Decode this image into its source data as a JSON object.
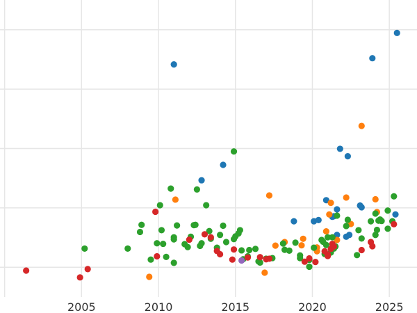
{
  "chart_data": {
    "type": "scatter",
    "title": "",
    "xlabel": "",
    "ylabel": "",
    "xlim": [
      1999.7,
      2026.8
    ],
    "ylim": [
      0,
      100
    ],
    "x_ticks": [
      2005,
      2010,
      2015,
      2020,
      2025
    ],
    "x_tick_labels": [
      "2005",
      "2010",
      "2015",
      "2020",
      "2025"
    ],
    "y_gridlines": [
      10,
      30,
      50,
      70,
      90
    ],
    "grid": true,
    "legend": "none",
    "series": [
      {
        "color": "#1f77b4",
        "points": [
          [
            2011.0,
            78.3
          ],
          [
            2012.8,
            39.3
          ],
          [
            2014.2,
            44.5
          ],
          [
            2018.8,
            25.5
          ],
          [
            2020.1,
            25.5
          ],
          [
            2020.4,
            25.9
          ],
          [
            2020.9,
            32.6
          ],
          [
            2021.3,
            27.0
          ],
          [
            2021.4,
            27.2
          ],
          [
            2021.6,
            20.9
          ],
          [
            2021.6,
            29.5
          ],
          [
            2021.8,
            49.9
          ],
          [
            2022.2,
            20.3
          ],
          [
            2022.3,
            47.4
          ],
          [
            2022.4,
            20.9
          ],
          [
            2023.1,
            30.8
          ],
          [
            2023.2,
            30.2
          ],
          [
            2023.9,
            80.4
          ],
          [
            2025.4,
            27.8
          ],
          [
            2025.5,
            88.9
          ]
        ]
      },
      {
        "color": "#ff7f0e",
        "points": [
          [
            2009.4,
            6.8
          ],
          [
            2011.1,
            32.8
          ],
          [
            2016.9,
            8.2
          ],
          [
            2017.2,
            34.2
          ],
          [
            2017.6,
            17.3
          ],
          [
            2018.2,
            18.5
          ],
          [
            2019.3,
            17.4
          ],
          [
            2019.4,
            19.6
          ],
          [
            2020.3,
            15.4
          ],
          [
            2020.3,
            16.7
          ],
          [
            2020.9,
            22.1
          ],
          [
            2021.1,
            27.8
          ],
          [
            2021.2,
            31.7
          ],
          [
            2021.6,
            19.2
          ],
          [
            2022.2,
            33.5
          ],
          [
            2022.5,
            24.6
          ],
          [
            2023.2,
            57.6
          ],
          [
            2024.1,
            32.9
          ],
          [
            2024.2,
            28.6
          ]
        ]
      },
      {
        "color": "#2ca02c",
        "points": [
          [
            2005.2,
            16.3
          ],
          [
            2008.0,
            16.3
          ],
          [
            2008.8,
            21.9
          ],
          [
            2008.9,
            24.3
          ],
          [
            2009.5,
            12.6
          ],
          [
            2009.9,
            18.1
          ],
          [
            2010.1,
            30.9
          ],
          [
            2010.2,
            22.5
          ],
          [
            2010.3,
            17.9
          ],
          [
            2010.5,
            13.5
          ],
          [
            2010.8,
            36.5
          ],
          [
            2011.0,
            20.1
          ],
          [
            2011.0,
            19.4
          ],
          [
            2011.0,
            11.5
          ],
          [
            2011.2,
            24.1
          ],
          [
            2011.7,
            17.8
          ],
          [
            2011.9,
            16.8
          ],
          [
            2012.1,
            20.3
          ],
          [
            2012.3,
            24.2
          ],
          [
            2012.4,
            24.3
          ],
          [
            2012.5,
            36.2
          ],
          [
            2012.7,
            17.2
          ],
          [
            2012.8,
            18.1
          ],
          [
            2013.1,
            30.9
          ],
          [
            2013.3,
            22.2
          ],
          [
            2013.4,
            19.6
          ],
          [
            2013.8,
            16.6
          ],
          [
            2014.0,
            20.9
          ],
          [
            2014.2,
            24.0
          ],
          [
            2014.4,
            18.5
          ],
          [
            2014.9,
            19.5
          ],
          [
            2014.9,
            49.0
          ],
          [
            2015.0,
            20.4
          ],
          [
            2015.2,
            21.4
          ],
          [
            2015.3,
            22.5
          ],
          [
            2015.4,
            15.7
          ],
          [
            2015.5,
            12.7
          ],
          [
            2015.8,
            13.7
          ],
          [
            2015.9,
            15.8
          ],
          [
            2016.3,
            16.2
          ],
          [
            2016.5,
            12.0
          ],
          [
            2016.6,
            11.6
          ],
          [
            2017.0,
            12.9
          ],
          [
            2017.4,
            13.1
          ],
          [
            2018.1,
            18.0
          ],
          [
            2018.2,
            15.9
          ],
          [
            2018.5,
            15.6
          ],
          [
            2018.9,
            18.3
          ],
          [
            2019.2,
            14.0
          ],
          [
            2019.2,
            13.1
          ],
          [
            2019.8,
            10.2
          ],
          [
            2019.8,
            12.5
          ],
          [
            2020.1,
            16.6
          ],
          [
            2020.6,
            19.2
          ],
          [
            2020.7,
            18.6
          ],
          [
            2020.8,
            14.5
          ],
          [
            2020.9,
            17.5
          ],
          [
            2021.0,
            20.1
          ],
          [
            2021.2,
            15.0
          ],
          [
            2021.3,
            20.1
          ],
          [
            2021.4,
            16.3
          ],
          [
            2021.5,
            17.0
          ],
          [
            2021.6,
            27.4
          ],
          [
            2022.2,
            23.9
          ],
          [
            2022.3,
            26.0
          ],
          [
            2022.9,
            14.1
          ],
          [
            2023.0,
            22.5
          ],
          [
            2023.2,
            19.7
          ],
          [
            2023.8,
            25.5
          ],
          [
            2024.1,
            20.9
          ],
          [
            2024.1,
            28.1
          ],
          [
            2024.2,
            22.6
          ],
          [
            2024.3,
            25.7
          ],
          [
            2024.4,
            26.1
          ],
          [
            2024.5,
            25.6
          ],
          [
            2024.9,
            23.0
          ],
          [
            2024.9,
            29.1
          ],
          [
            2025.2,
            25.5
          ],
          [
            2025.3,
            33.9
          ]
        ]
      },
      {
        "color": "#d62728",
        "points": [
          [
            2001.4,
            8.9
          ],
          [
            2004.9,
            6.6
          ],
          [
            2005.4,
            9.4
          ],
          [
            2009.8,
            28.7
          ],
          [
            2009.9,
            13.7
          ],
          [
            2012.0,
            19.3
          ],
          [
            2013.0,
            21.1
          ],
          [
            2013.4,
            20.1
          ],
          [
            2013.8,
            15.5
          ],
          [
            2014.0,
            14.4
          ],
          [
            2014.8,
            12.6
          ],
          [
            2014.9,
            16.0
          ],
          [
            2015.8,
            13.3
          ],
          [
            2016.6,
            13.4
          ],
          [
            2017.0,
            12.7
          ],
          [
            2017.2,
            12.9
          ],
          [
            2019.5,
            11.9
          ],
          [
            2019.8,
            13.0
          ],
          [
            2020.2,
            11.8
          ],
          [
            2020.8,
            15.4
          ],
          [
            2021.0,
            14.3
          ],
          [
            2021.0,
            13.8
          ],
          [
            2021.2,
            16.2
          ],
          [
            2021.3,
            17.9
          ],
          [
            2021.4,
            17.0
          ],
          [
            2023.2,
            15.8
          ],
          [
            2023.8,
            18.5
          ],
          [
            2023.9,
            17.1
          ],
          [
            2025.3,
            24.5
          ]
        ]
      },
      {
        "color": "#9467bd",
        "points": [
          [
            2015.4,
            12.3
          ]
        ]
      }
    ]
  }
}
